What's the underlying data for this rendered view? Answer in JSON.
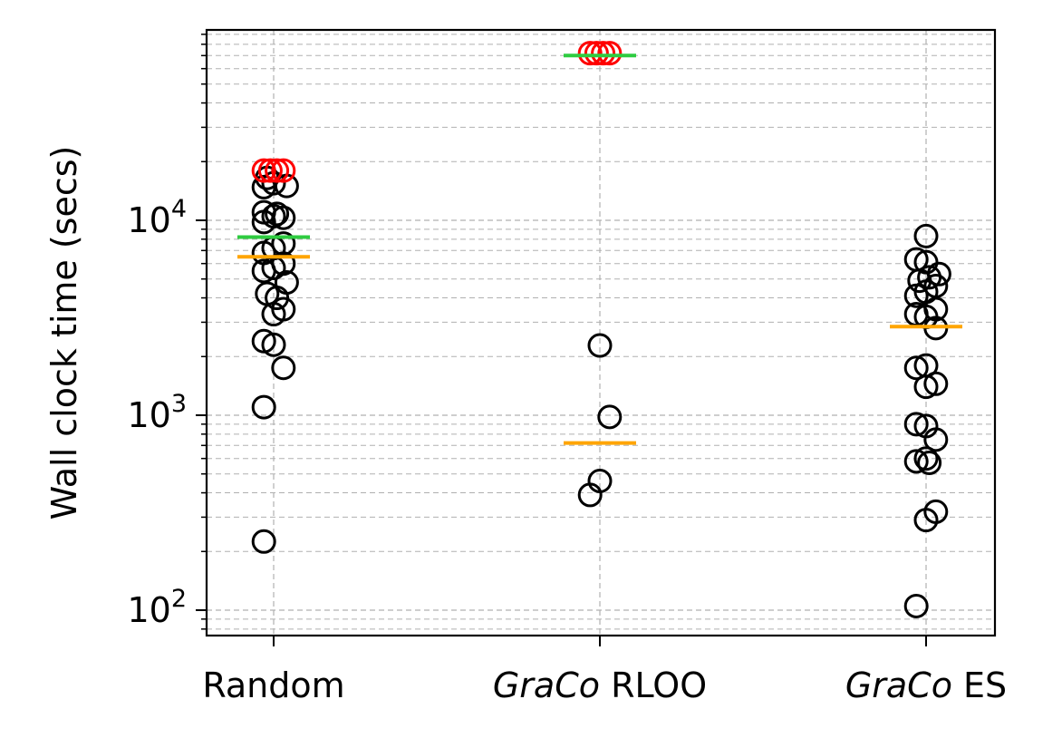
{
  "chart_data": {
    "type": "scatter",
    "ylabel": "Wall clock time (secs)",
    "yscale": "log",
    "ylim": [
      77,
      95000
    ],
    "yticks": [
      {
        "value": 100,
        "base": "10",
        "exp": "2"
      },
      {
        "value": 1000,
        "base": "10",
        "exp": "3"
      },
      {
        "value": 10000,
        "base": "10",
        "exp": "4"
      }
    ],
    "grid": true,
    "categories": [
      {
        "italic": "",
        "plain": "Random"
      },
      {
        "italic": "GraCo",
        "plain": " RLOO"
      },
      {
        "italic": "GraCo",
        "plain": " ES"
      }
    ],
    "colors": {
      "points": "#000000",
      "timeout_points": "#ff0000",
      "mean_line": "#2ecc40",
      "median_line": "#ffa500",
      "grid": "#b0b0b0"
    },
    "groups": [
      {
        "points": [
          {
            "dx": -0.03,
            "y": 225
          },
          {
            "dx": -0.03,
            "y": 1100
          },
          {
            "dx": 0.03,
            "y": 1750
          },
          {
            "dx": 0.0,
            "y": 2300
          },
          {
            "dx": -0.03,
            "y": 2400
          },
          {
            "dx": 0.03,
            "y": 3500
          },
          {
            "dx": 0.0,
            "y": 3300
          },
          {
            "dx": -0.02,
            "y": 4200
          },
          {
            "dx": 0.01,
            "y": 4000
          },
          {
            "dx": 0.04,
            "y": 4800
          },
          {
            "dx": -0.03,
            "y": 5500
          },
          {
            "dx": 0.0,
            "y": 5700
          },
          {
            "dx": 0.03,
            "y": 6000
          },
          {
            "dx": -0.03,
            "y": 6800
          },
          {
            "dx": 0.0,
            "y": 7200
          },
          {
            "dx": 0.03,
            "y": 7600
          },
          {
            "dx": -0.03,
            "y": 9800
          },
          {
            "dx": 0.0,
            "y": 10500
          },
          {
            "dx": 0.03,
            "y": 10300
          },
          {
            "dx": -0.03,
            "y": 11000
          },
          {
            "dx": 0.01,
            "y": 10800
          },
          {
            "dx": -0.03,
            "y": 14800
          },
          {
            "dx": 0.0,
            "y": 15500
          },
          {
            "dx": 0.04,
            "y": 15000
          },
          {
            "dx": -0.02,
            "y": 16500
          }
        ],
        "timeouts": [
          {
            "dx": -0.03,
            "y": 18000
          },
          {
            "dx": -0.01,
            "y": 18000
          },
          {
            "dx": 0.01,
            "y": 18000
          },
          {
            "dx": 0.03,
            "y": 18000
          }
        ],
        "mean": 8200,
        "median": 6500
      },
      {
        "points": [
          {
            "dx": -0.03,
            "y": 390
          },
          {
            "dx": 0.0,
            "y": 460
          },
          {
            "dx": 0.03,
            "y": 980
          },
          {
            "dx": 0.0,
            "y": 2280
          }
        ],
        "timeouts": [
          {
            "dx": -0.03,
            "y": 72000
          },
          {
            "dx": -0.01,
            "y": 72000
          },
          {
            "dx": 0.01,
            "y": 72000
          },
          {
            "dx": 0.03,
            "y": 72000
          }
        ],
        "mean": 70000,
        "median": 720
      },
      {
        "points": [
          {
            "dx": -0.03,
            "y": 105
          },
          {
            "dx": 0.03,
            "y": 320
          },
          {
            "dx": 0.0,
            "y": 290
          },
          {
            "dx": -0.03,
            "y": 580
          },
          {
            "dx": 0.0,
            "y": 600
          },
          {
            "dx": 0.01,
            "y": 570
          },
          {
            "dx": 0.03,
            "y": 750
          },
          {
            "dx": -0.03,
            "y": 900
          },
          {
            "dx": 0.0,
            "y": 880
          },
          {
            "dx": 0.03,
            "y": 1450
          },
          {
            "dx": 0.0,
            "y": 1400
          },
          {
            "dx": -0.03,
            "y": 1750
          },
          {
            "dx": 0.0,
            "y": 1800
          },
          {
            "dx": 0.03,
            "y": 2800
          },
          {
            "dx": -0.03,
            "y": 3300
          },
          {
            "dx": 0.0,
            "y": 3200
          },
          {
            "dx": 0.03,
            "y": 3500
          },
          {
            "dx": -0.03,
            "y": 4100
          },
          {
            "dx": 0.0,
            "y": 4300
          },
          {
            "dx": 0.03,
            "y": 4600
          },
          {
            "dx": -0.02,
            "y": 4900
          },
          {
            "dx": 0.01,
            "y": 5100
          },
          {
            "dx": 0.04,
            "y": 5300
          },
          {
            "dx": -0.03,
            "y": 6300
          },
          {
            "dx": 0.0,
            "y": 6100
          },
          {
            "dx": 0.0,
            "y": 8300
          }
        ],
        "timeouts": [],
        "mean": null,
        "median": 2850
      }
    ]
  }
}
